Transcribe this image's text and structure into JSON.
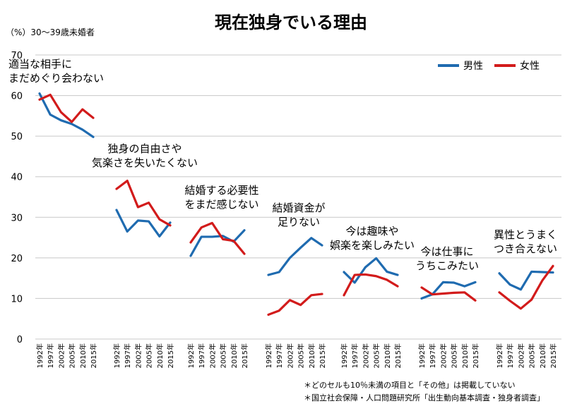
{
  "chart_data": {
    "type": "line",
    "title": "現在独身でいる理由",
    "unit_label": "（%）30～39歳未婚者",
    "ylim": [
      0,
      70
    ],
    "yticks": [
      0,
      10,
      20,
      30,
      40,
      50,
      60,
      70
    ],
    "x": [
      "1992年",
      "1997年",
      "2002年",
      "2005年",
      "2010年",
      "2015年"
    ],
    "legend": {
      "placement": "top-right"
    },
    "series_names": [
      "男性",
      "女性"
    ],
    "colors": {
      "male": "#1f6bb0",
      "female": "#d21b1b"
    },
    "groups": [
      {
        "label": [
          "適当な相手に",
          "まだめぐり会わない"
        ],
        "male": [
          60.5,
          55.3,
          53.9,
          53.0,
          51.6,
          49.8
        ],
        "female": [
          59.0,
          60.2,
          55.9,
          53.5,
          56.6,
          54.5
        ]
      },
      {
        "label": [
          "独身の自由さや",
          "気楽さを失いたくない"
        ],
        "male": [
          31.8,
          26.5,
          29.2,
          29.0,
          25.3,
          28.7
        ],
        "female": [
          37.0,
          39.0,
          32.5,
          33.6,
          29.5,
          28.0
        ]
      },
      {
        "label": [
          "結婚する必要性",
          "をまだ感じない"
        ],
        "male": [
          20.5,
          25.2,
          25.2,
          25.4,
          24.0,
          26.8
        ],
        "female": [
          23.8,
          27.5,
          28.6,
          24.6,
          24.2,
          21.0
        ]
      },
      {
        "label": [
          "結婚資金が",
          "足りない"
        ],
        "male": [
          15.8,
          16.5,
          20.0,
          22.5,
          24.9,
          23.1
        ],
        "female": [
          6.0,
          7.0,
          9.6,
          8.4,
          10.8,
          11.1
        ]
      },
      {
        "label": [
          "今は趣味や",
          "娯楽を楽しみたい"
        ],
        "male": [
          16.5,
          13.9,
          17.7,
          19.9,
          16.6,
          15.8
        ],
        "female": [
          10.8,
          15.8,
          15.9,
          15.5,
          14.6,
          13.0
        ]
      },
      {
        "label": [
          "今は仕事に",
          "うちこみたい"
        ],
        "male": [
          10.0,
          11.0,
          14.0,
          13.9,
          13.0,
          14.0
        ],
        "female": [
          12.7,
          11.0,
          11.2,
          11.4,
          11.5,
          9.5
        ]
      },
      {
        "label": [
          "異性とうまく",
          "つき合えない"
        ],
        "male": [
          16.2,
          13.4,
          12.2,
          16.6,
          16.5,
          16.4
        ],
        "female": [
          11.5,
          9.4,
          7.5,
          9.7,
          14.4,
          18.0
        ]
      }
    ],
    "notes": [
      "＊どのセルも10％未満の項目と「その他」は掲載していない",
      "＊国立社会保障・人口問題研究所「出生動向基本調査・独身者調査」"
    ]
  }
}
